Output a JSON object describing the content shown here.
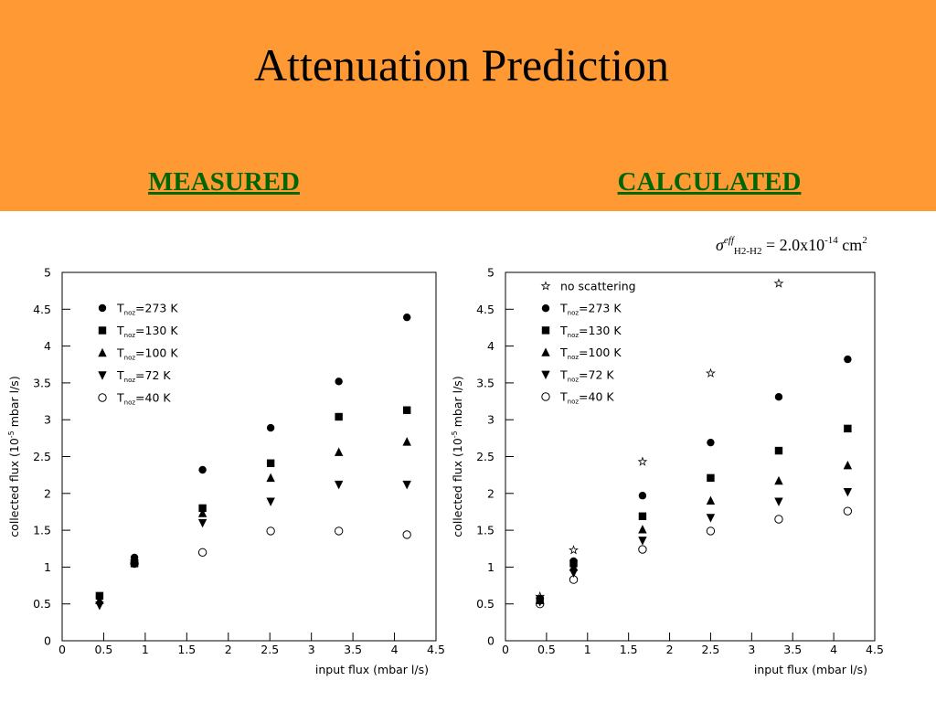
{
  "slide": {
    "title": "Attenuation Prediction",
    "left_heading": "MEASURED",
    "right_heading": "CALCULATED",
    "annotation": [
      "σ",
      "eff",
      "H2-H2",
      " =  2.0x10",
      "-14",
      " cm",
      "2"
    ]
  },
  "chart_data": [
    {
      "type": "scatter",
      "x_label": "input flux (mbar l/s)",
      "y_label": [
        "collected flux (10",
        "-5",
        " mbar l/s)"
      ],
      "xlim": [
        0,
        4.5
      ],
      "ylim": [
        0,
        5
      ],
      "xticks": [
        0,
        0.5,
        1,
        1.5,
        2,
        2.5,
        3,
        3.5,
        4,
        4.5
      ],
      "yticks": [
        0,
        0.5,
        1,
        1.5,
        2,
        2.5,
        3,
        3.5,
        4,
        4.5,
        5
      ],
      "x": [
        0.45,
        0.87,
        1.69,
        2.51,
        3.33,
        4.15
      ],
      "series": [
        {
          "name": [
            "T",
            "noz",
            "=273 K"
          ],
          "marker": "circle",
          "color": "#000000",
          "values": [
            0.6,
            1.13,
            2.32,
            2.89,
            3.52,
            4.39
          ]
        },
        {
          "name": [
            "T",
            "noz",
            "=130 K"
          ],
          "marker": "square",
          "color": "#000000",
          "values": [
            0.61,
            1.05,
            1.8,
            2.41,
            3.04,
            3.13
          ]
        },
        {
          "name": [
            "T",
            "noz",
            "=100 K"
          ],
          "marker": "triangle-up",
          "color": "#000000",
          "values": [
            0.55,
            1.08,
            1.73,
            2.21,
            2.56,
            2.7
          ]
        },
        {
          "name": [
            "T",
            "noz",
            "=72 K"
          ],
          "marker": "triangle-down",
          "color": "#000000",
          "values": [
            0.48,
            1.05,
            1.6,
            1.89,
            2.12,
            2.12
          ]
        },
        {
          "name": [
            "T",
            "noz",
            "=40 K"
          ],
          "marker": "open-circle",
          "color": "#000000",
          "values": [
            null,
            1.05,
            1.2,
            1.49,
            1.49,
            1.44
          ]
        }
      ]
    },
    {
      "type": "scatter",
      "x_label": "input flux (mbar l/s)",
      "y_label": [
        "collected flux (10",
        "-5",
        " mbar l/s)"
      ],
      "xlim": [
        0,
        4.5
      ],
      "ylim": [
        0,
        5
      ],
      "xticks": [
        0,
        0.5,
        1,
        1.5,
        2,
        2.5,
        3,
        3.5,
        4,
        4.5
      ],
      "yticks": [
        0,
        0.5,
        1,
        1.5,
        2,
        2.5,
        3,
        3.5,
        4,
        4.5,
        5
      ],
      "x": [
        0.42,
        0.83,
        1.67,
        2.5,
        3.33,
        4.17
      ],
      "series": [
        {
          "name": [
            "no scattering"
          ],
          "marker": "star",
          "color": "#000000",
          "values": [
            0.6,
            1.23,
            2.43,
            3.63,
            4.85,
            null
          ]
        },
        {
          "name": [
            "T",
            "noz",
            "=273 K"
          ],
          "marker": "circle",
          "color": "#000000",
          "values": [
            0.57,
            1.08,
            1.97,
            2.69,
            3.31,
            3.82
          ]
        },
        {
          "name": [
            "T",
            "noz",
            "=130 K"
          ],
          "marker": "square",
          "color": "#000000",
          "values": [
            0.55,
            1.05,
            1.69,
            2.21,
            2.58,
            2.88
          ]
        },
        {
          "name": [
            "T",
            "noz",
            "=100 K"
          ],
          "marker": "triangle-up",
          "color": "#000000",
          "values": [
            0.55,
            1.0,
            1.51,
            1.9,
            2.17,
            2.38
          ]
        },
        {
          "name": [
            "T",
            "noz",
            "=72 K"
          ],
          "marker": "triangle-down",
          "color": "#000000",
          "values": [
            0.53,
            0.92,
            1.36,
            1.67,
            1.89,
            2.02
          ]
        },
        {
          "name": [
            "T",
            "noz",
            "=40 K"
          ],
          "marker": "open-circle",
          "color": "#000000",
          "values": [
            0.5,
            0.83,
            1.24,
            1.49,
            1.65,
            1.76
          ]
        }
      ]
    }
  ]
}
